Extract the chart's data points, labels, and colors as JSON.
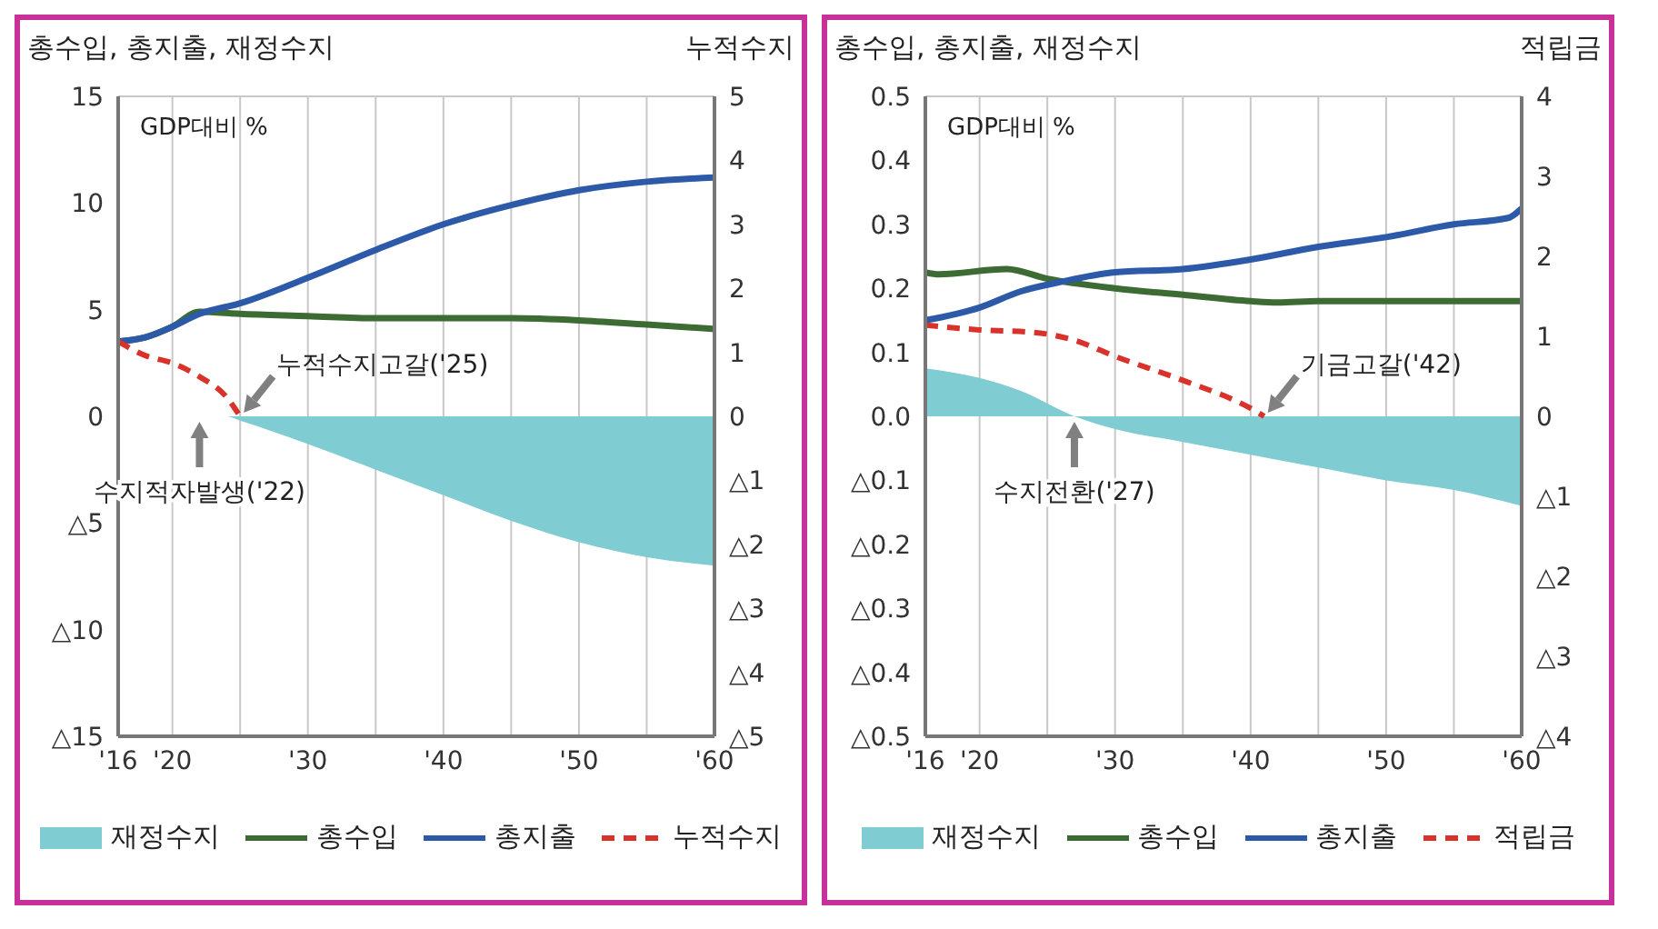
{
  "chart_data": [
    {
      "type": "line",
      "ylabel": "총수입, 총지출, 재정수지",
      "y2label": "누적수지",
      "annotations": [
        "GDP대비 %",
        {
          "text": "누적수지고갈('25)",
          "x": 2025,
          "y": 0
        },
        {
          "text": "수지적자발생('22)",
          "x": 2022,
          "y": 0
        }
      ],
      "xlim": [
        2016,
        2060
      ],
      "xticks": [
        {
          "value": 2016,
          "label": "'16"
        },
        {
          "value": 2020,
          "label": "'20"
        },
        {
          "value": 2025,
          "label": null
        },
        {
          "value": 2030,
          "label": "'30"
        },
        {
          "value": 2035,
          "label": null
        },
        {
          "value": 2040,
          "label": "'40"
        },
        {
          "value": 2045,
          "label": null
        },
        {
          "value": 2050,
          "label": "'50"
        },
        {
          "value": 2055,
          "label": null
        },
        {
          "value": 2060,
          "label": "'60"
        }
      ],
      "ylim": [
        -15,
        15
      ],
      "yticks": [
        15,
        10,
        5,
        0,
        {
          "value": -5,
          "label": "△5"
        },
        {
          "value": -10,
          "label": "△10"
        },
        {
          "value": -15,
          "label": "△15"
        }
      ],
      "y2lim": [
        -5,
        5
      ],
      "y2ticks": [
        5,
        4,
        3,
        2,
        1,
        0,
        {
          "value": -1,
          "label": "△1"
        },
        {
          "value": -2,
          "label": "△2"
        },
        {
          "value": -3,
          "label": "△3"
        },
        {
          "value": -4,
          "label": "△4"
        },
        {
          "value": -5,
          "label": "△5"
        }
      ],
      "grid": true,
      "legend": "bottom",
      "marker": "none",
      "series": [
        {
          "name": "재정수지",
          "type": "area",
          "color": "#7fccd3",
          "x": [
            2022,
            2024,
            2025,
            2030,
            2035,
            2040,
            2045,
            2050,
            2055,
            2060
          ],
          "values": [
            0,
            0,
            -0.2,
            -1.3,
            -2.5,
            -3.7,
            -4.9,
            -5.9,
            -6.6,
            -7.0
          ]
        },
        {
          "name": "총수입",
          "color": "#3d6b34",
          "x": [
            2016,
            2018,
            2020,
            2022,
            2025,
            2030,
            2035,
            2040,
            2045,
            2050,
            2055,
            2060
          ],
          "values": [
            3.5,
            3.7,
            4.2,
            4.9,
            4.8,
            4.7,
            4.6,
            4.6,
            4.6,
            4.5,
            4.3,
            4.1
          ]
        },
        {
          "name": "총지출",
          "color": "#2c5aa8",
          "x": [
            2016,
            2018,
            2020,
            2022,
            2025,
            2030,
            2035,
            2040,
            2045,
            2050,
            2055,
            2060
          ],
          "values": [
            3.5,
            3.7,
            4.2,
            4.8,
            5.3,
            6.5,
            7.8,
            9.0,
            9.9,
            10.6,
            11.0,
            11.2
          ]
        },
        {
          "name": "누적수지",
          "line_style": "dashed",
          "axis": "y2",
          "color": "#d9322a",
          "x": [
            2016,
            2018,
            2020,
            2022,
            2024,
            2025
          ],
          "values": [
            1.17,
            0.95,
            0.83,
            0.62,
            0.3,
            0
          ]
        }
      ]
    },
    {
      "type": "line",
      "ylabel": "총수입, 총지출, 재정수지",
      "y2label": "적립금",
      "annotations": [
        "GDP대비 %",
        {
          "text": "기금고갈('42)",
          "x": 2041,
          "y": 0
        },
        {
          "text": "수지전환('27)",
          "x": 2027,
          "y": 0
        }
      ],
      "xlim": [
        2016,
        2060
      ],
      "xticks": [
        {
          "value": 2016,
          "label": "'16"
        },
        {
          "value": 2020,
          "label": "'20"
        },
        {
          "value": 2025,
          "label": null
        },
        {
          "value": 2030,
          "label": "'30"
        },
        {
          "value": 2035,
          "label": null
        },
        {
          "value": 2040,
          "label": "'40"
        },
        {
          "value": 2045,
          "label": null
        },
        {
          "value": 2050,
          "label": "'50"
        },
        {
          "value": 2055,
          "label": null
        },
        {
          "value": 2060,
          "label": "'60"
        }
      ],
      "ylim": [
        -0.5,
        0.5
      ],
      "yticks": [
        0.5,
        0.4,
        0.3,
        0.2,
        0.1,
        {
          "value": 0,
          "label": "0.0"
        },
        {
          "value": -0.1,
          "label": "△0.1"
        },
        {
          "value": -0.2,
          "label": "△0.2"
        },
        {
          "value": -0.3,
          "label": "△0.3"
        },
        {
          "value": -0.4,
          "label": "△0.4"
        },
        {
          "value": -0.5,
          "label": "△0.5"
        }
      ],
      "y2lim": [
        -4,
        4
      ],
      "y2ticks": [
        4,
        3,
        2,
        1,
        0,
        {
          "value": -1,
          "label": "△1"
        },
        {
          "value": -2,
          "label": "△2"
        },
        {
          "value": -3,
          "label": "△3"
        },
        {
          "value": -4,
          "label": "△4"
        }
      ],
      "grid": true,
      "legend": "bottom",
      "marker": "none",
      "series": [
        {
          "name": "재정수지",
          "type": "area",
          "color": "#7fccd3",
          "x": [
            2016,
            2020,
            2023,
            2027,
            2030,
            2035,
            2040,
            2045,
            2050,
            2055,
            2060
          ],
          "values": [
            0.075,
            0.06,
            0.04,
            0,
            -0.02,
            -0.04,
            -0.06,
            -0.08,
            -0.1,
            -0.115,
            -0.14
          ]
        },
        {
          "name": "총수입",
          "color": "#3d6b34",
          "x": [
            2016,
            2017,
            2022,
            2025,
            2030,
            2035,
            2040,
            2042,
            2045,
            2050,
            2060
          ],
          "values": [
            0.225,
            0.222,
            0.23,
            0.215,
            0.2,
            0.19,
            0.18,
            0.178,
            0.18,
            0.18,
            0.18
          ]
        },
        {
          "name": "총지출",
          "color": "#2c5aa8",
          "x": [
            2016,
            2020,
            2023,
            2026,
            2030,
            2035,
            2040,
            2045,
            2050,
            2055,
            2059,
            2060
          ],
          "values": [
            0.15,
            0.17,
            0.195,
            0.21,
            0.225,
            0.23,
            0.245,
            0.265,
            0.28,
            0.3,
            0.31,
            0.325
          ]
        },
        {
          "name": "적립금",
          "line_style": "dashed",
          "axis": "y2",
          "color": "#d9322a",
          "x": [
            2016,
            2020,
            2024,
            2027,
            2030,
            2035,
            2040,
            2041
          ],
          "values": [
            1.14,
            1.08,
            1.05,
            0.95,
            0.75,
            0.45,
            0.1,
            0
          ]
        }
      ]
    }
  ]
}
